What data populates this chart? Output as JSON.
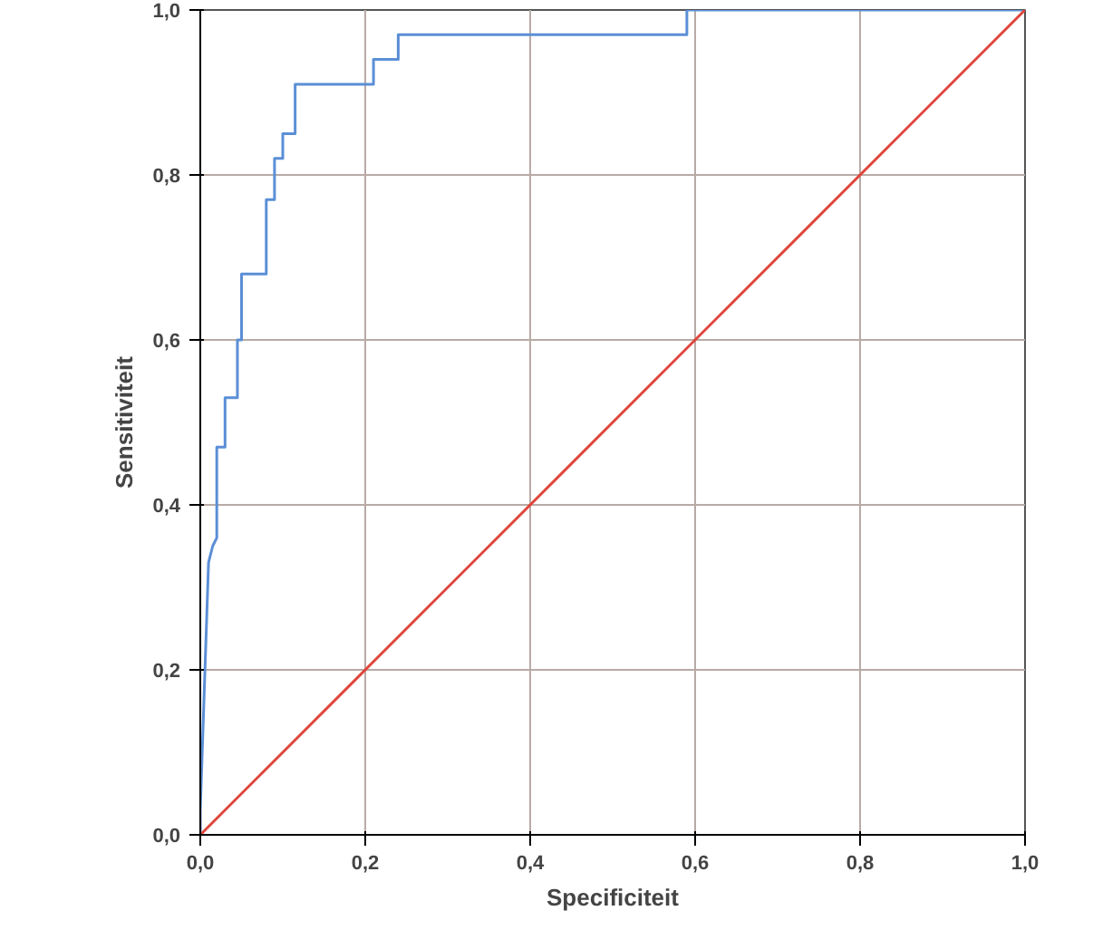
{
  "chart_data": {
    "type": "line",
    "xlabel": "Specificiteit",
    "ylabel": "Sensitiviteit",
    "xlim": [
      0,
      1
    ],
    "ylim": [
      0,
      1
    ],
    "xticks": [
      {
        "value": 0,
        "label": "0,0"
      },
      {
        "value": 0.2,
        "label": "0,2"
      },
      {
        "value": 0.4,
        "label": "0,4"
      },
      {
        "value": 0.6,
        "label": "0,6"
      },
      {
        "value": 0.8,
        "label": "0,8"
      },
      {
        "value": 1,
        "label": "1,0"
      }
    ],
    "yticks": [
      {
        "value": 0,
        "label": "0,0"
      },
      {
        "value": 0.2,
        "label": "0,2"
      },
      {
        "value": 0.4,
        "label": "0,4"
      },
      {
        "value": 0.6,
        "label": "0,6"
      },
      {
        "value": 0.8,
        "label": "0,8"
      },
      {
        "value": 1,
        "label": "1,0"
      }
    ],
    "grid": true,
    "marker": "none",
    "line_style": "solid",
    "series": [
      {
        "color": "#5b8fd6",
        "x": [
          0,
          0,
          0.005,
          0.01,
          0.015,
          0.02,
          0.02,
          0.03,
          0.03,
          0.045,
          0.045,
          0.05,
          0.05,
          0.08,
          0.08,
          0.09,
          0.09,
          0.1,
          0.1,
          0.115,
          0.115,
          0.21,
          0.21,
          0.24,
          0.24,
          0.59,
          0.59,
          1
        ],
        "values": [
          0,
          0.03,
          0.18,
          0.33,
          0.35,
          0.36,
          0.47,
          0.47,
          0.53,
          0.53,
          0.6,
          0.6,
          0.68,
          0.68,
          0.77,
          0.77,
          0.82,
          0.82,
          0.85,
          0.85,
          0.91,
          0.91,
          0.94,
          0.94,
          0.97,
          0.97,
          1,
          1
        ]
      },
      {
        "color": "#e0443a",
        "x": [
          0,
          1
        ],
        "values": [
          0,
          1
        ]
      }
    ]
  }
}
